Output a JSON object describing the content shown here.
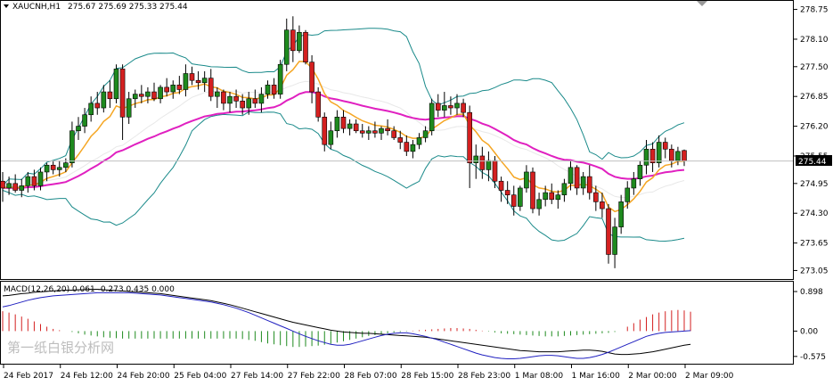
{
  "header": {
    "symbol": "XAUCNH,H1",
    "ohlc": "275.67 275.69 275.33 275.44"
  },
  "macd_header": "MACD(12,26,20) 0.061 -0.273 0.435 0.000",
  "watermark": "第一纸白银分析网",
  "price_badge": "275.44",
  "colors": {
    "bull_body": "#1e8a1e",
    "bear_body": "#d42020",
    "ma_fast": "#f5a623",
    "ma_slow": "#e020c0",
    "bollinger": "#1a8a8a",
    "macd_line": "#000000",
    "signal_line": "#2020c0",
    "hist_pos": "#d42020",
    "hist_neg": "#1e8a1e"
  },
  "chart_data": [
    {
      "type": "candlestick",
      "symbol": "XAUCNH,H1",
      "y_ticks": [
        "278.75",
        "278.10",
        "277.50",
        "276.85",
        "276.20",
        "275.55",
        "274.95",
        "274.30",
        "273.65",
        "273.05"
      ],
      "ylim": [
        273.0,
        278.8
      ],
      "x_ticks": [
        "24 Feb 2017",
        "24 Feb 12:00",
        "24 Feb 20:00",
        "25 Feb 04:00",
        "27 Feb 14:00",
        "27 Feb 22:00",
        "28 Feb 07:00",
        "28 Feb 15:00",
        "28 Feb 23:00",
        "1 Mar 08:00",
        "1 Mar 16:00",
        "2 Mar 00:00",
        "2 Mar 09:00"
      ],
      "last_price": 275.44,
      "candles": [
        {
          "o": 275.0,
          "h": 275.2,
          "l": 274.55,
          "c": 274.85
        },
        {
          "o": 274.85,
          "h": 275.1,
          "l": 274.7,
          "c": 274.95
        },
        {
          "o": 274.95,
          "h": 275.15,
          "l": 274.75,
          "c": 274.8
        },
        {
          "o": 274.8,
          "h": 275.05,
          "l": 274.65,
          "c": 274.9
        },
        {
          "o": 274.9,
          "h": 275.2,
          "l": 274.75,
          "c": 275.1
        },
        {
          "o": 275.1,
          "h": 275.25,
          "l": 274.8,
          "c": 274.9
        },
        {
          "o": 274.9,
          "h": 275.3,
          "l": 274.8,
          "c": 275.2
        },
        {
          "o": 275.2,
          "h": 275.4,
          "l": 275.0,
          "c": 275.35
        },
        {
          "o": 275.35,
          "h": 275.45,
          "l": 275.15,
          "c": 275.25
        },
        {
          "o": 275.25,
          "h": 275.45,
          "l": 275.1,
          "c": 275.3
        },
        {
          "o": 275.3,
          "h": 275.5,
          "l": 275.2,
          "c": 275.4
        },
        {
          "o": 275.4,
          "h": 276.3,
          "l": 275.3,
          "c": 276.1
        },
        {
          "o": 276.1,
          "h": 276.4,
          "l": 275.9,
          "c": 276.2
        },
        {
          "o": 276.2,
          "h": 276.6,
          "l": 276.05,
          "c": 276.45
        },
        {
          "o": 276.45,
          "h": 276.85,
          "l": 276.3,
          "c": 276.7
        },
        {
          "o": 276.7,
          "h": 276.95,
          "l": 276.45,
          "c": 276.6
        },
        {
          "o": 276.6,
          "h": 277.1,
          "l": 276.5,
          "c": 276.95
        },
        {
          "o": 276.95,
          "h": 277.2,
          "l": 276.6,
          "c": 276.8
        },
        {
          "o": 276.8,
          "h": 277.55,
          "l": 276.7,
          "c": 277.45
        },
        {
          "o": 277.45,
          "h": 277.55,
          "l": 275.9,
          "c": 276.4
        },
        {
          "o": 276.4,
          "h": 276.95,
          "l": 276.25,
          "c": 276.8
        },
        {
          "o": 276.8,
          "h": 277.0,
          "l": 276.6,
          "c": 276.9
        },
        {
          "o": 276.9,
          "h": 277.1,
          "l": 276.7,
          "c": 276.85
        },
        {
          "o": 276.85,
          "h": 277.05,
          "l": 276.7,
          "c": 276.95
        },
        {
          "o": 276.95,
          "h": 277.15,
          "l": 276.75,
          "c": 276.8
        },
        {
          "o": 276.8,
          "h": 277.1,
          "l": 276.7,
          "c": 277.05
        },
        {
          "o": 277.05,
          "h": 277.25,
          "l": 276.85,
          "c": 276.95
        },
        {
          "o": 276.95,
          "h": 277.2,
          "l": 276.8,
          "c": 277.1
        },
        {
          "o": 277.1,
          "h": 277.3,
          "l": 276.9,
          "c": 277.0
        },
        {
          "o": 277.0,
          "h": 277.55,
          "l": 276.85,
          "c": 277.35
        },
        {
          "o": 277.35,
          "h": 277.5,
          "l": 277.1,
          "c": 277.2
        },
        {
          "o": 277.2,
          "h": 277.4,
          "l": 277.0,
          "c": 277.15
        },
        {
          "o": 277.15,
          "h": 277.4,
          "l": 276.95,
          "c": 277.25
        },
        {
          "o": 277.25,
          "h": 277.45,
          "l": 276.75,
          "c": 276.85
        },
        {
          "o": 276.85,
          "h": 277.05,
          "l": 276.6,
          "c": 276.95
        },
        {
          "o": 276.95,
          "h": 277.0,
          "l": 276.55,
          "c": 276.7
        },
        {
          "o": 276.7,
          "h": 276.95,
          "l": 276.5,
          "c": 276.85
        },
        {
          "o": 276.85,
          "h": 277.0,
          "l": 276.6,
          "c": 276.75
        },
        {
          "o": 276.75,
          "h": 276.9,
          "l": 276.45,
          "c": 276.6
        },
        {
          "o": 276.6,
          "h": 276.95,
          "l": 276.45,
          "c": 276.8
        },
        {
          "o": 276.8,
          "h": 277.0,
          "l": 276.6,
          "c": 276.7
        },
        {
          "o": 276.7,
          "h": 277.05,
          "l": 276.5,
          "c": 276.9
        },
        {
          "o": 276.9,
          "h": 277.2,
          "l": 276.8,
          "c": 277.1
        },
        {
          "o": 277.1,
          "h": 277.25,
          "l": 276.8,
          "c": 276.9
        },
        {
          "o": 276.9,
          "h": 277.65,
          "l": 276.8,
          "c": 277.55
        },
        {
          "o": 277.55,
          "h": 278.55,
          "l": 277.4,
          "c": 278.3
        },
        {
          "o": 278.3,
          "h": 278.6,
          "l": 277.6,
          "c": 277.85
        },
        {
          "o": 277.85,
          "h": 278.4,
          "l": 277.8,
          "c": 278.25
        },
        {
          "o": 278.25,
          "h": 278.3,
          "l": 277.55,
          "c": 277.6
        },
        {
          "o": 277.6,
          "h": 277.75,
          "l": 276.7,
          "c": 276.95
        },
        {
          "o": 276.95,
          "h": 277.05,
          "l": 276.3,
          "c": 276.4
        },
        {
          "o": 276.4,
          "h": 276.5,
          "l": 275.65,
          "c": 275.8
        },
        {
          "o": 275.8,
          "h": 276.3,
          "l": 275.7,
          "c": 276.1
        },
        {
          "o": 276.1,
          "h": 276.55,
          "l": 275.95,
          "c": 276.4
        },
        {
          "o": 276.4,
          "h": 276.55,
          "l": 276.05,
          "c": 276.15
        },
        {
          "o": 276.15,
          "h": 276.35,
          "l": 276.0,
          "c": 276.25
        },
        {
          "o": 276.25,
          "h": 276.35,
          "l": 276.05,
          "c": 276.1
        },
        {
          "o": 276.1,
          "h": 276.25,
          "l": 275.95,
          "c": 276.05
        },
        {
          "o": 276.05,
          "h": 276.2,
          "l": 275.9,
          "c": 276.1
        },
        {
          "o": 276.1,
          "h": 276.3,
          "l": 275.95,
          "c": 276.05
        },
        {
          "o": 276.05,
          "h": 276.2,
          "l": 275.9,
          "c": 276.15
        },
        {
          "o": 276.15,
          "h": 276.35,
          "l": 276.0,
          "c": 276.1
        },
        {
          "o": 276.1,
          "h": 276.2,
          "l": 275.9,
          "c": 275.95
        },
        {
          "o": 275.95,
          "h": 276.1,
          "l": 275.7,
          "c": 275.85
        },
        {
          "o": 275.85,
          "h": 276.0,
          "l": 275.55,
          "c": 275.65
        },
        {
          "o": 275.65,
          "h": 275.9,
          "l": 275.5,
          "c": 275.8
        },
        {
          "o": 275.8,
          "h": 276.05,
          "l": 275.7,
          "c": 275.95
        },
        {
          "o": 275.95,
          "h": 276.2,
          "l": 275.85,
          "c": 276.1
        },
        {
          "o": 276.1,
          "h": 276.8,
          "l": 276.0,
          "c": 276.7
        },
        {
          "o": 276.7,
          "h": 276.9,
          "l": 276.4,
          "c": 276.55
        },
        {
          "o": 276.55,
          "h": 276.95,
          "l": 276.4,
          "c": 276.65
        },
        {
          "o": 276.65,
          "h": 276.85,
          "l": 276.45,
          "c": 276.6
        },
        {
          "o": 276.6,
          "h": 276.9,
          "l": 276.45,
          "c": 276.7
        },
        {
          "o": 276.7,
          "h": 276.8,
          "l": 276.4,
          "c": 276.5
        },
        {
          "o": 276.5,
          "h": 276.65,
          "l": 274.85,
          "c": 275.4
        },
        {
          "o": 275.4,
          "h": 275.8,
          "l": 275.05,
          "c": 275.55
        },
        {
          "o": 275.55,
          "h": 275.75,
          "l": 275.05,
          "c": 275.25
        },
        {
          "o": 275.25,
          "h": 275.65,
          "l": 275.0,
          "c": 275.45
        },
        {
          "o": 275.45,
          "h": 275.55,
          "l": 274.85,
          "c": 275.0
        },
        {
          "o": 275.0,
          "h": 275.1,
          "l": 274.55,
          "c": 274.8
        },
        {
          "o": 274.8,
          "h": 275.0,
          "l": 274.5,
          "c": 274.7
        },
        {
          "o": 274.7,
          "h": 274.9,
          "l": 274.25,
          "c": 274.45
        },
        {
          "o": 274.45,
          "h": 274.9,
          "l": 274.35,
          "c": 274.85
        },
        {
          "o": 274.85,
          "h": 275.35,
          "l": 274.75,
          "c": 275.2
        },
        {
          "o": 275.2,
          "h": 275.3,
          "l": 274.3,
          "c": 274.4
        },
        {
          "o": 274.4,
          "h": 274.75,
          "l": 274.25,
          "c": 274.6
        },
        {
          "o": 274.6,
          "h": 274.9,
          "l": 274.45,
          "c": 274.75
        },
        {
          "o": 274.75,
          "h": 274.95,
          "l": 274.5,
          "c": 274.6
        },
        {
          "o": 274.6,
          "h": 274.8,
          "l": 274.4,
          "c": 274.7
        },
        {
          "o": 274.7,
          "h": 275.05,
          "l": 274.55,
          "c": 274.95
        },
        {
          "o": 274.95,
          "h": 275.45,
          "l": 274.8,
          "c": 275.3
        },
        {
          "o": 275.3,
          "h": 275.35,
          "l": 274.7,
          "c": 274.85
        },
        {
          "o": 274.85,
          "h": 275.2,
          "l": 274.7,
          "c": 275.1
        },
        {
          "o": 275.1,
          "h": 275.35,
          "l": 274.6,
          "c": 274.75
        },
        {
          "o": 274.75,
          "h": 274.9,
          "l": 274.35,
          "c": 274.55
        },
        {
          "o": 274.55,
          "h": 274.75,
          "l": 274.2,
          "c": 274.4
        },
        {
          "o": 274.4,
          "h": 274.5,
          "l": 273.2,
          "c": 273.4
        },
        {
          "o": 273.4,
          "h": 274.2,
          "l": 273.1,
          "c": 274.0
        },
        {
          "o": 274.0,
          "h": 274.7,
          "l": 273.85,
          "c": 274.55
        },
        {
          "o": 274.55,
          "h": 275.0,
          "l": 274.4,
          "c": 274.85
        },
        {
          "o": 274.85,
          "h": 275.2,
          "l": 274.7,
          "c": 275.05
        },
        {
          "o": 275.05,
          "h": 275.45,
          "l": 274.9,
          "c": 275.35
        },
        {
          "o": 275.35,
          "h": 275.9,
          "l": 275.15,
          "c": 275.7
        },
        {
          "o": 275.7,
          "h": 275.85,
          "l": 275.2,
          "c": 275.4
        },
        {
          "o": 275.4,
          "h": 276.0,
          "l": 275.3,
          "c": 275.85
        },
        {
          "o": 275.85,
          "h": 275.95,
          "l": 275.5,
          "c": 275.7
        },
        {
          "o": 275.7,
          "h": 275.8,
          "l": 275.3,
          "c": 275.45
        },
        {
          "o": 275.45,
          "h": 275.75,
          "l": 275.35,
          "c": 275.65
        },
        {
          "o": 275.67,
          "h": 275.69,
          "l": 275.33,
          "c": 275.44
        }
      ]
    },
    {
      "type": "macd",
      "title": "MACD(12,26,20)",
      "y_ticks": [
        "0.898",
        "0.00",
        "-0.575"
      ],
      "ylim": [
        -0.7,
        1.0
      ],
      "histogram": [
        0.45,
        0.42,
        0.38,
        0.33,
        0.28,
        0.22,
        0.16,
        0.1,
        0.05,
        0.02,
        0.0,
        -0.02,
        -0.05,
        -0.08,
        -0.1,
        -0.12,
        -0.14,
        -0.15,
        -0.16,
        -0.17,
        -0.17,
        -0.17,
        -0.17,
        -0.17,
        -0.17,
        -0.17,
        -0.17,
        -0.17,
        -0.17,
        -0.17,
        -0.17,
        -0.17,
        -0.17,
        -0.17,
        -0.17,
        -0.17,
        -0.17,
        -0.17,
        -0.18,
        -0.2,
        -0.22,
        -0.25,
        -0.28,
        -0.3,
        -0.32,
        -0.34,
        -0.36,
        -0.36,
        -0.35,
        -0.34,
        -0.33,
        -0.31,
        -0.29,
        -0.26,
        -0.23,
        -0.2,
        -0.17,
        -0.14,
        -0.11,
        -0.09,
        -0.07,
        -0.05,
        -0.03,
        -0.02,
        -0.01,
        0.01,
        0.02,
        0.03,
        0.04,
        0.05,
        0.06,
        0.07,
        0.07,
        0.06,
        0.05,
        0.03,
        0.01,
        -0.01,
        -0.03,
        -0.05,
        -0.06,
        -0.07,
        -0.08,
        -0.09,
        -0.1,
        -0.11,
        -0.12,
        -0.12,
        -0.12,
        -0.11,
        -0.1,
        -0.09,
        -0.08,
        -0.07,
        -0.06,
        -0.05,
        -0.04,
        -0.02,
        0.0,
        0.1,
        0.18,
        0.26,
        0.32,
        0.38,
        0.42,
        0.45,
        0.47,
        0.48,
        0.47,
        0.44
      ],
      "macd_line": [
        0.8,
        0.81,
        0.83,
        0.85,
        0.86,
        0.88,
        0.89,
        0.9,
        0.91,
        0.92,
        0.93,
        0.93,
        0.94,
        0.94,
        0.95,
        0.95,
        0.94,
        0.93,
        0.92,
        0.91,
        0.9,
        0.89,
        0.88,
        0.87,
        0.86,
        0.85,
        0.83,
        0.81,
        0.79,
        0.77,
        0.75,
        0.73,
        0.71,
        0.69,
        0.66,
        0.63,
        0.6,
        0.56,
        0.52,
        0.48,
        0.44,
        0.4,
        0.36,
        0.32,
        0.28,
        0.24,
        0.2,
        0.17,
        0.14,
        0.11,
        0.08,
        0.05,
        0.02,
        0.0,
        -0.02,
        -0.03,
        -0.04,
        -0.05,
        -0.05,
        -0.06,
        -0.07,
        -0.08,
        -0.09,
        -0.1,
        -0.11,
        -0.12,
        -0.13,
        -0.14,
        -0.16,
        -0.18,
        -0.2,
        -0.22,
        -0.24,
        -0.26,
        -0.28,
        -0.3,
        -0.32,
        -0.34,
        -0.36,
        -0.38,
        -0.4,
        -0.42,
        -0.44,
        -0.45,
        -0.46,
        -0.47,
        -0.47,
        -0.47,
        -0.47,
        -0.46,
        -0.45,
        -0.44,
        -0.43,
        -0.43,
        -0.44,
        -0.46,
        -0.49,
        -0.52,
        -0.53,
        -0.53,
        -0.52,
        -0.51,
        -0.49,
        -0.47,
        -0.44,
        -0.41,
        -0.38,
        -0.35,
        -0.32,
        -0.3
      ],
      "signal_line": [
        0.55,
        0.58,
        0.62,
        0.66,
        0.7,
        0.73,
        0.76,
        0.78,
        0.8,
        0.81,
        0.82,
        0.83,
        0.84,
        0.85,
        0.86,
        0.87,
        0.87,
        0.87,
        0.87,
        0.87,
        0.87,
        0.86,
        0.85,
        0.84,
        0.83,
        0.82,
        0.8,
        0.78,
        0.76,
        0.74,
        0.72,
        0.7,
        0.68,
        0.66,
        0.63,
        0.6,
        0.56,
        0.52,
        0.47,
        0.42,
        0.36,
        0.3,
        0.24,
        0.18,
        0.12,
        0.06,
        0.0,
        -0.06,
        -0.12,
        -0.17,
        -0.22,
        -0.26,
        -0.3,
        -0.32,
        -0.32,
        -0.3,
        -0.26,
        -0.22,
        -0.18,
        -0.14,
        -0.1,
        -0.07,
        -0.05,
        -0.04,
        -0.04,
        -0.06,
        -0.09,
        -0.12,
        -0.16,
        -0.2,
        -0.25,
        -0.3,
        -0.35,
        -0.4,
        -0.45,
        -0.5,
        -0.54,
        -0.57,
        -0.6,
        -0.62,
        -0.63,
        -0.63,
        -0.62,
        -0.6,
        -0.58,
        -0.56,
        -0.55,
        -0.55,
        -0.56,
        -0.58,
        -0.6,
        -0.62,
        -0.62,
        -0.6,
        -0.57,
        -0.53,
        -0.48,
        -0.42,
        -0.36,
        -0.3,
        -0.24,
        -0.18,
        -0.12,
        -0.08,
        -0.05,
        -0.03,
        -0.02,
        -0.01,
        0.0,
        0.01
      ]
    }
  ]
}
